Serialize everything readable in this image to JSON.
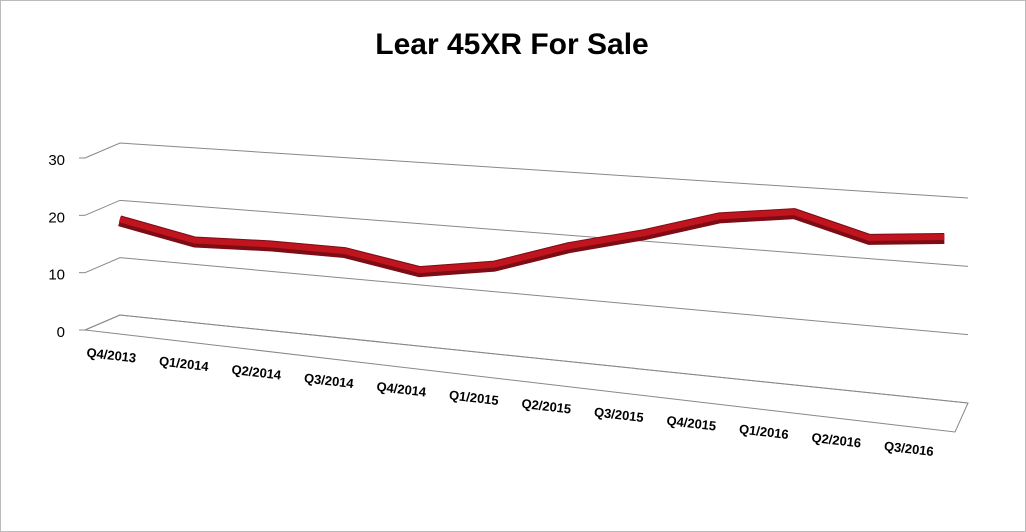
{
  "chart_data": {
    "type": "line3d",
    "title": "Lear 45XR For Sale",
    "categories": [
      "Q4/2013",
      "Q1/2014",
      "Q2/2014",
      "Q3/2014",
      "Q4/2014",
      "Q1/2015",
      "Q2/2015",
      "Q3/2015",
      "Q4/2015",
      "Q1/2016",
      "Q2/2016",
      "Q3/2016"
    ],
    "series": [
      {
        "color": "#c0141f",
        "values": [
          18,
          15.5,
          16,
          16,
          14,
          16,
          20,
          23,
          26.5,
          28,
          25,
          26
        ]
      }
    ],
    "ylim": [
      0,
      30
    ],
    "yticks": [
      0,
      10,
      20,
      30
    ],
    "grid": true
  }
}
